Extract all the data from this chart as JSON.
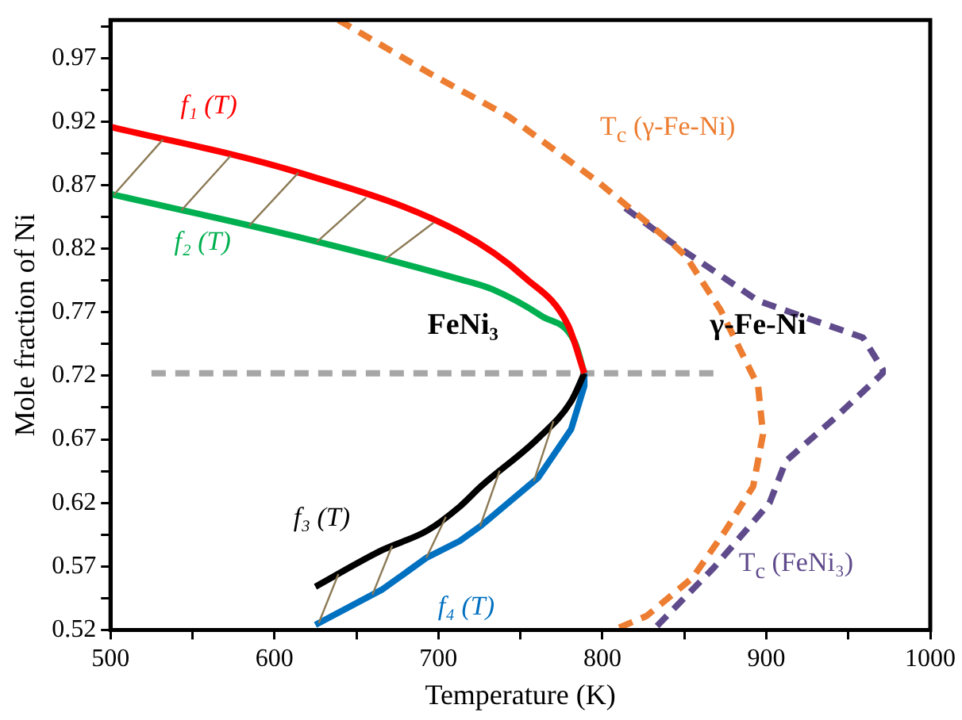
{
  "chart_data": {
    "type": "line",
    "xlabel": "Temperature (K)",
    "ylabel": "Mole fraction of Ni",
    "xlim": [
      500,
      1000
    ],
    "xticks": [
      500,
      {
        "value": 550,
        "label": null
      },
      600,
      {
        "value": 650,
        "label": null
      },
      700,
      {
        "value": 750,
        "label": null
      },
      800,
      {
        "value": 850,
        "label": null
      },
      900,
      {
        "value": 950,
        "label": null
      },
      1000
    ],
    "ylim": [
      0.52,
      1.0
    ],
    "yticks": [
      0.52,
      {
        "value": 0.545,
        "label": null
      },
      0.57,
      {
        "value": 0.595,
        "label": null
      },
      0.62,
      {
        "value": 0.645,
        "label": null
      },
      0.67,
      {
        "value": 0.695,
        "label": null
      },
      0.72,
      {
        "value": 0.745,
        "label": null
      },
      0.77,
      {
        "value": 0.795,
        "label": null
      },
      0.82,
      {
        "value": 0.845,
        "label": null
      },
      0.87,
      {
        "value": 0.895,
        "label": null
      },
      0.92,
      {
        "value": 0.945,
        "label": null
      },
      0.97,
      {
        "value": 0.995,
        "label": null
      }
    ],
    "grid": false,
    "legend": false,
    "marker": "none",
    "series": [
      {
        "name": "f₁ (T)",
        "color": "#ff0000",
        "x": [
          500,
          612,
          713,
          753,
          779,
          789
        ],
        "values": [
          0.916,
          0.881,
          0.833,
          0.797,
          0.76,
          0.722
        ]
      },
      {
        "name": "f₂ (T)",
        "color": "#00b050",
        "x": [
          500,
          612,
          713,
          733,
          763,
          783,
          789
        ],
        "values": [
          0.863,
          0.83,
          0.796,
          0.788,
          0.767,
          0.747,
          0.722
        ]
      },
      {
        "name": "f₃ (T)",
        "color": "#000000",
        "x": [
          625,
          666,
          693,
          713,
          726,
          761,
          781,
          789
        ],
        "values": [
          0.554,
          0.583,
          0.598,
          0.617,
          0.633,
          0.671,
          0.7,
          0.722
        ]
      },
      {
        "name": "f₄ (T)",
        "color": "#0070c0",
        "x": [
          625,
          666,
          693,
          713,
          726,
          761,
          781,
          789,
          789
        ],
        "values": [
          0.524,
          0.552,
          0.577,
          0.59,
          0.602,
          0.64,
          0.678,
          0.712,
          0.722
        ]
      },
      {
        "name": "T$_{c}$ (γ-Fe-Ni)",
        "color": "#ed7d31",
        "line_style": "dashed",
        "x": [
          639,
          696,
          743,
          797,
          841,
          851,
          872,
          895,
          898,
          892,
          875,
          855,
          827,
          807
        ],
        "values": [
          1.0,
          0.957,
          0.924,
          0.873,
          0.826,
          0.814,
          0.772,
          0.712,
          0.674,
          0.633,
          0.598,
          0.561,
          0.531,
          0.52
        ]
      },
      {
        "name": "T$_{c}$ (FeNi₃)",
        "color": "#5f4b8b",
        "line_style": "dashed",
        "x": [
          814,
          841,
          895,
          959,
          971,
          971,
          942,
          912,
          902,
          868,
          831
        ],
        "values": [
          0.852,
          0.826,
          0.779,
          0.75,
          0.725,
          0.722,
          0.687,
          0.653,
          0.62,
          0.569,
          0.52
        ]
      },
      {
        "color": "#a6a6a6",
        "line_style": "dashed",
        "x": [
          525,
          868
        ],
        "values": [
          0.722,
          0.722
        ]
      }
    ],
    "annotations": [
      "FeNi₃",
      "γ-Fe-Ni"
    ]
  }
}
